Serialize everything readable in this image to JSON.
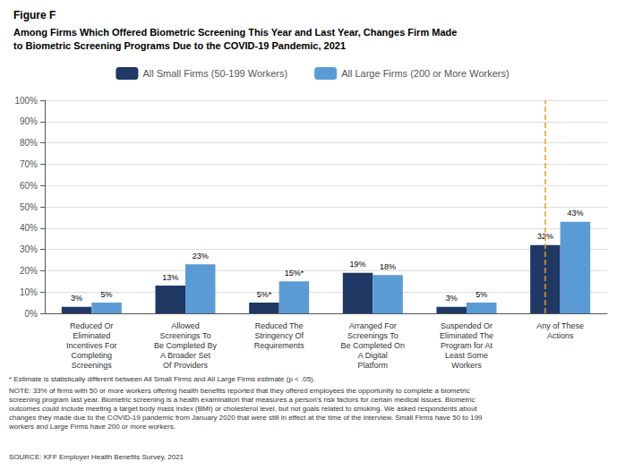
{
  "chart_data": {
    "type": "bar",
    "title": "Figure F",
    "subtitle": "Among Firms Which Offered Biometric Screening This Year and Last Year, Changes Firm Made\nto Biometric Screening Programs Due to the COVID-19 Pandemic, 2021",
    "categories": [
      "Reduced Or\nEliminated\nIncentives For\nCompleting\nScreenings",
      "Allowed\nScreenings To\nBe Completed By\nA Broader Set\nOf Providers",
      "Reduced The\nStringency Of\nRequirements",
      "Arranged For\nScreenings To\nBe Completed On\nA Digital\nPlatform",
      "Suspended Or\nEliminated The\nProgram for At\nLeast Some\nWorkers",
      "Any of These\nActions"
    ],
    "series": [
      {
        "name": "All Small Firms (50-199 Workers)",
        "color": "#1f3864",
        "values": [
          3,
          13,
          5,
          19,
          3,
          32
        ],
        "value_labels": [
          "3%",
          "13%",
          "5%*",
          "19%",
          "3%",
          "32%"
        ]
      },
      {
        "name": "All Large Firms (200 or More Workers)",
        "color": "#5b9bd5",
        "values": [
          5,
          23,
          15,
          18,
          5,
          43
        ],
        "value_labels": [
          "5%",
          "23%",
          "15%*",
          "18%",
          "5%",
          "43%"
        ]
      }
    ],
    "reference_line": {
      "before": "Any of These\nActions",
      "color": "#e8a020",
      "line_style": "dashed"
    },
    "ylim": [
      0,
      100
    ],
    "yticks": [
      {
        "value": 0,
        "label": "0%"
      },
      {
        "value": 10,
        "label": "10%"
      },
      {
        "value": 20,
        "label": "20%"
      },
      {
        "value": 30,
        "label": "30%"
      },
      {
        "value": 40,
        "label": "40%"
      },
      {
        "value": 50,
        "label": "50%"
      },
      {
        "value": 60,
        "label": "60%"
      },
      {
        "value": 70,
        "label": "70%"
      },
      {
        "value": 80,
        "label": "80%"
      },
      {
        "value": 90,
        "label": "90%"
      },
      {
        "value": 100,
        "label": "100%"
      }
    ],
    "grid": true,
    "legend": "top",
    "data_labels": true,
    "annotations": [
      "* Estimate is statistically different between All Small Firms and All Large Firms estimate (p < .05).",
      "NOTE: 33% of firms with 50 or more workers offering health benefits reported that they offered employees the opportunity to complete a biometric\nscreening program last year. Biometric screening is a health examination that measures a person's risk factors for certain medical issues. Biometric\noutcomes could include meeting a target body mass index (BMI) or cholesterol level, but not goals related to smoking. We asked respondents about\nchanges they made due to the COVID-19 pandemic from January 2020 that were still in effect at the time of the interview. Small Firms have 50 to 199\nworkers and Large Firms have 200 or more workers.",
      "SOURCE: KFF Employer Health Benefits Survey, 2021"
    ]
  }
}
